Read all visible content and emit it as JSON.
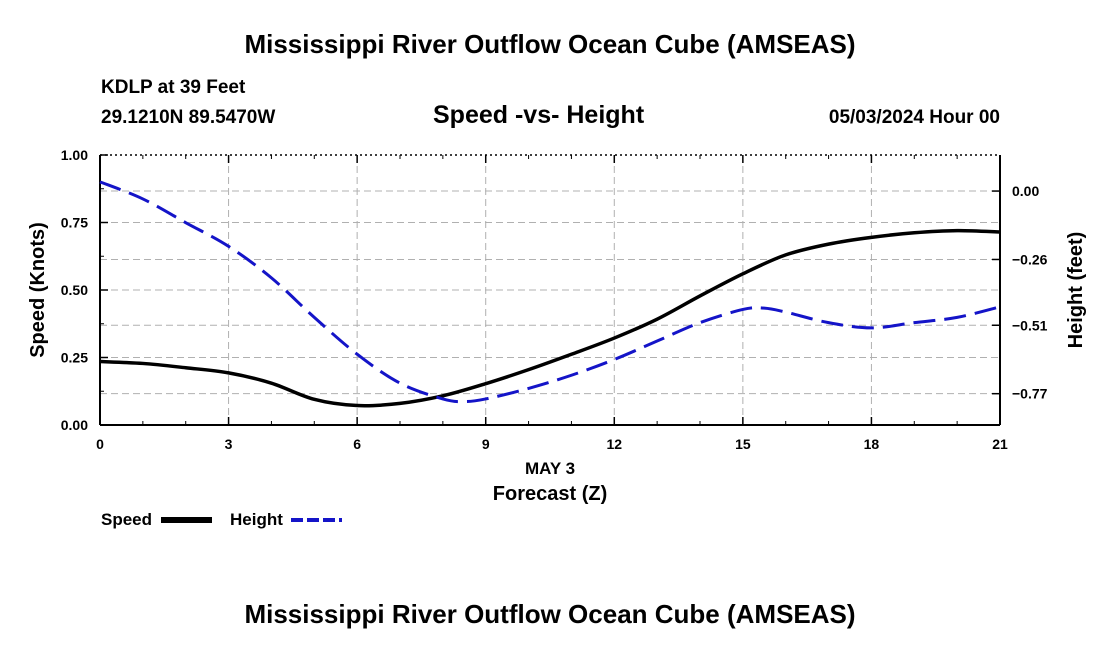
{
  "header": {
    "title": "Mississippi River Outflow Ocean Cube (AMSEAS)",
    "station": "KDLP at 39 Feet",
    "coords": "29.1210N  89.5470W",
    "subtitle": "Speed -vs- Height",
    "datetime": "05/03/2024 Hour 00",
    "footer_title": "Mississippi River Outflow Ocean Cube (AMSEAS)"
  },
  "chart_data": {
    "type": "line",
    "title": "Speed -vs- Height",
    "xlabel_line1": "MAY 3",
    "xlabel_line2": "Forecast (Z)",
    "ylabel_left": "Speed (Knots)",
    "ylabel_right": "Height (feet)",
    "xlim": [
      0,
      21
    ],
    "x_ticks": [
      0,
      3,
      6,
      9,
      12,
      15,
      18,
      21
    ],
    "y_left_lim": [
      0,
      1
    ],
    "y_left_ticks": [
      "0.00",
      "0.25",
      "0.50",
      "0.75",
      "1.00"
    ],
    "y_right_lim": [
      -0.889,
      0.137
    ],
    "y_right_ticks": [
      "0.00",
      "-0.26",
      "-0.51",
      "-0.77"
    ],
    "grid": true,
    "legend_position": "bottom-left",
    "series": [
      {
        "name": "Speed",
        "axis": "left",
        "color": "#000000",
        "style": "solid",
        "x": [
          0,
          1,
          2,
          3,
          4,
          5,
          6,
          7,
          8,
          9,
          10,
          11,
          12,
          13,
          14,
          15,
          16,
          17,
          18,
          19,
          20,
          21
        ],
        "y": [
          0.235,
          0.228,
          0.212,
          0.193,
          0.155,
          0.095,
          0.072,
          0.08,
          0.108,
          0.153,
          0.205,
          0.262,
          0.322,
          0.392,
          0.478,
          0.56,
          0.63,
          0.67,
          0.695,
          0.712,
          0.72,
          0.715
        ]
      },
      {
        "name": "Height",
        "axis": "right",
        "color": "#1414c8",
        "style": "dashed",
        "x": [
          0,
          1,
          2,
          3,
          4,
          5,
          6,
          7,
          8,
          8.5,
          9,
          10,
          11,
          12,
          13,
          14,
          15,
          15.5,
          16,
          17,
          18,
          19,
          20,
          21
        ],
        "y": [
          0.035,
          -0.03,
          -0.12,
          -0.21,
          -0.33,
          -0.48,
          -0.62,
          -0.73,
          -0.79,
          -0.8,
          -0.79,
          -0.75,
          -0.7,
          -0.64,
          -0.57,
          -0.5,
          -0.45,
          -0.445,
          -0.46,
          -0.5,
          -0.52,
          -0.5,
          -0.48,
          -0.44
        ]
      }
    ]
  }
}
